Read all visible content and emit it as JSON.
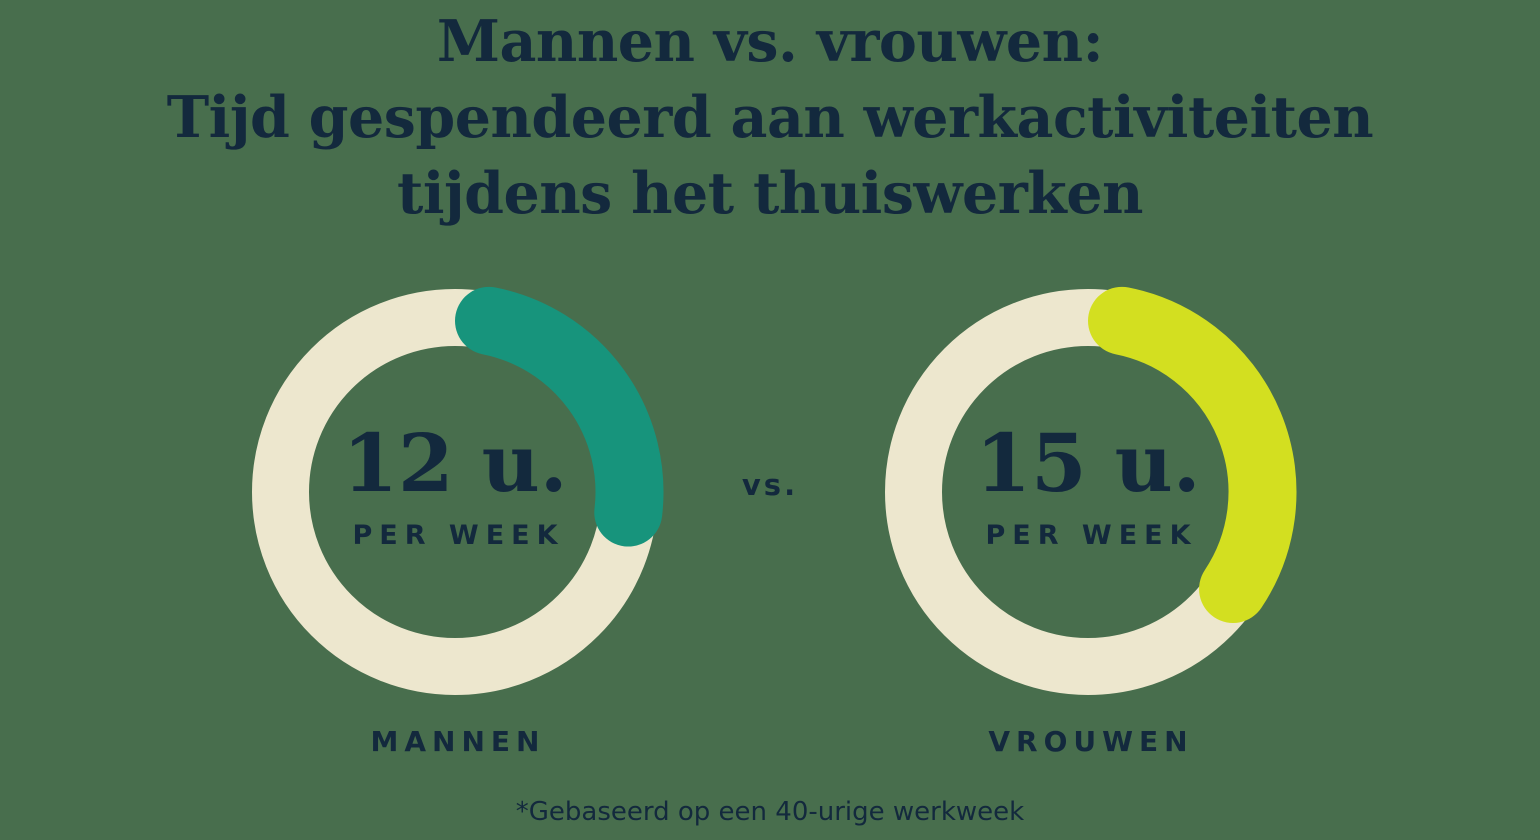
{
  "page": {
    "background_color": "#486E4D",
    "text_color": "#13293D"
  },
  "title": {
    "lines": [
      "Mannen vs. vrouwen:",
      "Tijd gespendeerd aan werkactiviteiten",
      "tijdens het thuiswerken"
    ]
  },
  "vs_label": "vs.",
  "footnote": "*Gebaseerd op een 40-urige werkweek",
  "chart_data": [
    {
      "type": "pie",
      "variant": "donut-progress",
      "group_label": "MANNEN",
      "center_value": "12 u.",
      "center_caption": "PER WEEK",
      "value_hours": 12,
      "total_hours": 40,
      "fraction": 0.3,
      "sweep_deg": 108,
      "start_position": "top",
      "direction": "clockwise",
      "arc_color": "#17947C",
      "track_color": "#EDE7CE"
    },
    {
      "type": "pie",
      "variant": "donut-progress",
      "group_label": "VROUWEN",
      "center_value": "15 u.",
      "center_caption": "PER WEEK",
      "value_hours": 15,
      "total_hours": 40,
      "fraction": 0.375,
      "sweep_deg": 135,
      "start_position": "top",
      "direction": "clockwise",
      "arc_color": "#D3DF20",
      "track_color": "#EDE7CE"
    }
  ]
}
